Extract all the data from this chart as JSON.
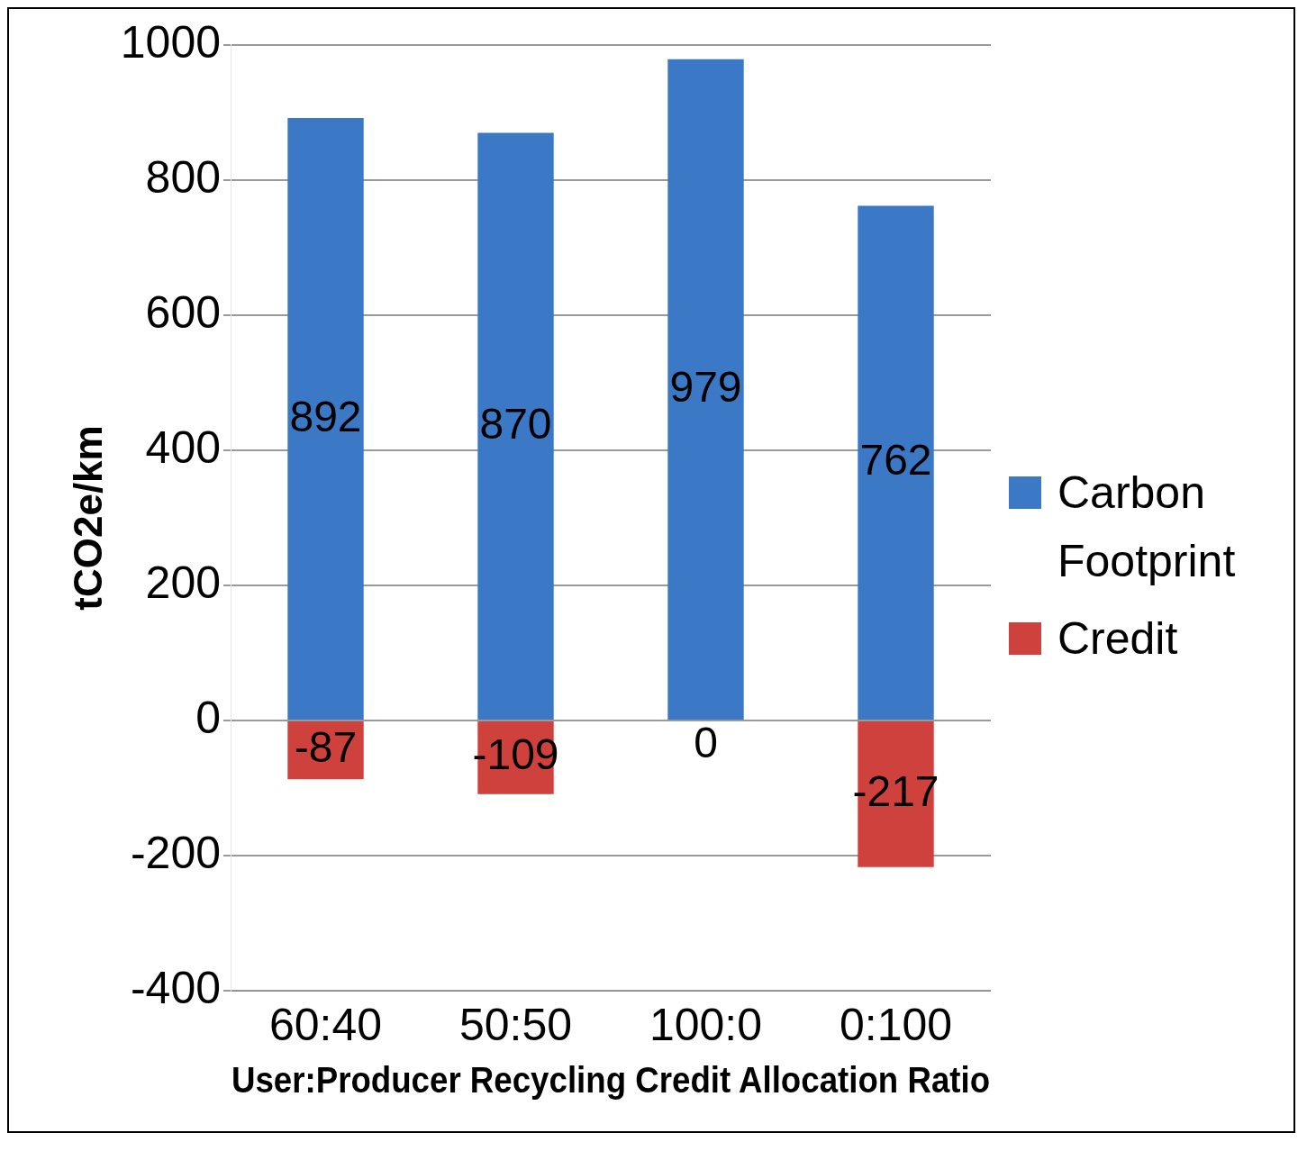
{
  "chart_data": {
    "type": "bar",
    "stacked": true,
    "categories": [
      "60:40",
      "50:50",
      "100:0",
      "0:100"
    ],
    "series": [
      {
        "name": "Carbon Footprint",
        "color": "#3b78c6",
        "values": [
          892,
          870,
          979,
          762
        ],
        "value_labels": [
          "892",
          "870",
          "979",
          "762"
        ]
      },
      {
        "name": "Credit",
        "color": "#cf413d",
        "values": [
          -87,
          -109,
          0,
          -217
        ],
        "value_labels": [
          "-87",
          "-109",
          null,
          "-217"
        ]
      }
    ],
    "annotations": [
      {
        "text": "0",
        "x": "100:0",
        "y": 0
      }
    ],
    "xlabel": "User:Producer Recycling Credit Allocation Ratio",
    "ylabel": "tCO2e/km",
    "ylim": [
      -400,
      1000
    ],
    "yticks": [
      -400,
      -200,
      0,
      200,
      400,
      600,
      800,
      1000
    ],
    "grid": "y",
    "legend": "right"
  }
}
